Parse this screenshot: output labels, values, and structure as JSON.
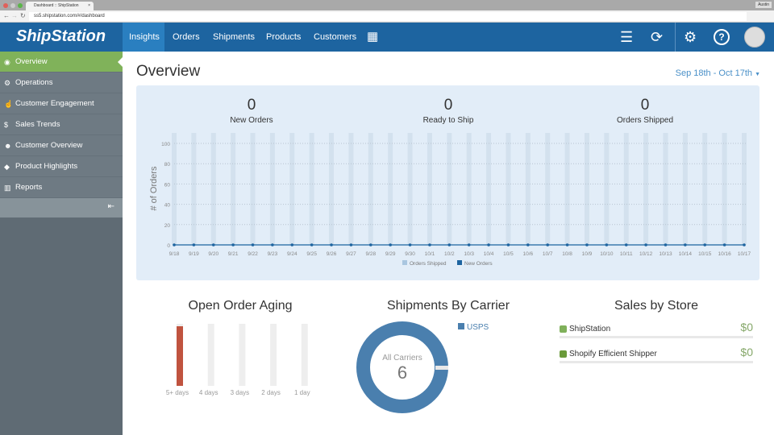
{
  "browser": {
    "tab_title": "Dashboard :: ShipStation",
    "url": "ss5.shipstation.com/#/dashboard",
    "user": "Austin"
  },
  "nav": {
    "logo": "ShipStation",
    "items": [
      "Insights",
      "Orders",
      "Shipments",
      "Products",
      "Customers"
    ],
    "active": "Insights"
  },
  "sidebar": {
    "items": [
      {
        "label": "Overview",
        "icon": "eye-icon"
      },
      {
        "label": "Operations",
        "icon": "gears-icon"
      },
      {
        "label": "Customer Engagement",
        "icon": "hand-pointer-icon"
      },
      {
        "label": "Sales Trends",
        "icon": "dollar-icon"
      },
      {
        "label": "Customer Overview",
        "icon": "users-icon"
      },
      {
        "label": "Product Highlights",
        "icon": "tags-icon"
      },
      {
        "label": "Reports",
        "icon": "bar-chart-icon"
      }
    ],
    "active": "Overview"
  },
  "page": {
    "title": "Overview",
    "date_range": "Sep 18th - Oct 17th"
  },
  "stats": [
    {
      "value": "0",
      "label": "New Orders"
    },
    {
      "value": "0",
      "label": "Ready to Ship"
    },
    {
      "value": "0",
      "label": "Orders Shipped"
    }
  ],
  "chart_data": [
    {
      "type": "bar+line",
      "ylabel": "# of Orders",
      "ylim": [
        0,
        100
      ],
      "yticks": [
        0,
        20,
        40,
        60,
        80,
        100
      ],
      "grid": true,
      "legend": "bottom-right",
      "categories": [
        "9/18",
        "9/19",
        "9/20",
        "9/21",
        "9/22",
        "9/23",
        "9/24",
        "9/25",
        "9/26",
        "9/27",
        "9/28",
        "9/29",
        "9/30",
        "10/1",
        "10/2",
        "10/3",
        "10/4",
        "10/5",
        "10/6",
        "10/7",
        "10/8",
        "10/9",
        "10/10",
        "10/11",
        "10/12",
        "10/13",
        "10/14",
        "10/15",
        "10/16",
        "10/17"
      ],
      "series": [
        {
          "name": "Orders Shipped",
          "type": "bar",
          "color": "#a9c6e0",
          "values": [
            0,
            0,
            0,
            0,
            0,
            0,
            0,
            0,
            0,
            0,
            0,
            0,
            0,
            0,
            0,
            0,
            0,
            0,
            0,
            0,
            0,
            0,
            0,
            0,
            0,
            0,
            0,
            0,
            0,
            0
          ]
        },
        {
          "name": "New Orders",
          "type": "line",
          "color": "#1d64a0",
          "values": [
            0,
            0,
            0,
            0,
            0,
            0,
            0,
            0,
            0,
            0,
            0,
            0,
            0,
            0,
            0,
            0,
            0,
            0,
            0,
            0,
            0,
            0,
            0,
            0,
            0,
            0,
            0,
            0,
            0,
            0
          ]
        }
      ]
    },
    {
      "type": "bar",
      "title": "Open Order Aging",
      "categories": [
        "5+ days",
        "4 days",
        "3 days",
        "2 days",
        "1 day"
      ],
      "values": [
        1,
        0,
        0,
        0,
        0
      ],
      "color": "#c0533f"
    },
    {
      "type": "pie",
      "title": "Shipments By Carrier",
      "center_label": "All Carriers",
      "center_value": "6",
      "series": [
        {
          "name": "USPS",
          "value": 6,
          "color": "#4a7fae"
        }
      ]
    }
  ],
  "sales_by_store": {
    "title": "Sales by Store",
    "stores": [
      {
        "name": "ShipStation",
        "value": "$0"
      },
      {
        "name": "Shopify Efficient Shipper",
        "value": "$0"
      }
    ]
  }
}
